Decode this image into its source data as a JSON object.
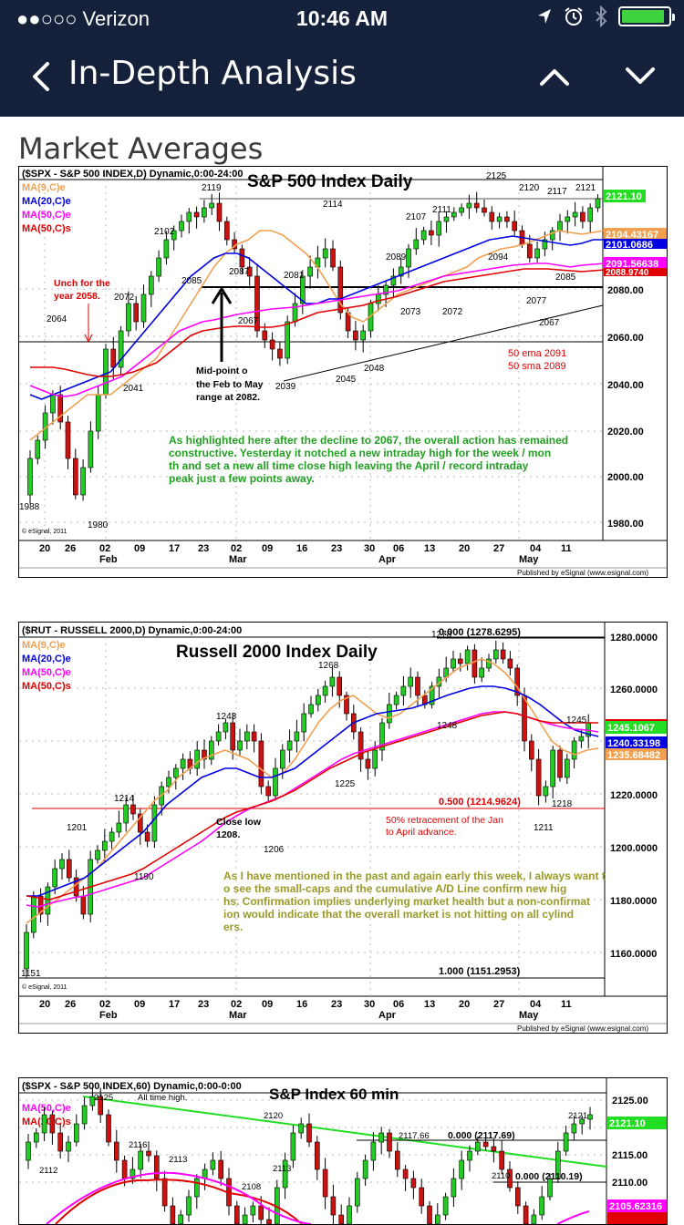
{
  "status_bar": {
    "carrier": "●●○○○ Verizon",
    "time": "10:46 AM"
  },
  "nav": {
    "title": "In-Depth Analysis"
  },
  "section": {
    "title": "Market Averages"
  },
  "chart1": {
    "header": "($SPX - S&P 500 INDEX,D) Dynamic,0:00-24:00",
    "title": "S&P 500 Index Daily",
    "legend": [
      "MA(9,C)e",
      "MA(20,C)e",
      "MA(50,C)e",
      "MA(50,C)s"
    ],
    "price_labels": [
      "2121.10",
      "2104.43167",
      "2101.0686",
      "2091.56638",
      "2088.9740"
    ],
    "y_ticks": [
      "2080.00",
      "2060.00",
      "2040.00",
      "2020.00",
      "2000.00",
      "1980.00"
    ],
    "x_ticks": [
      "20",
      "26",
      "02",
      "09",
      "17",
      "23",
      "02",
      "09",
      "16",
      "23",
      "30",
      "06",
      "13",
      "20",
      "27",
      "04",
      "11"
    ],
    "months": [
      "Feb",
      "Mar",
      "Apr",
      "May"
    ],
    "peaks": [
      "2119",
      "2125",
      "2120",
      "2117",
      "2121",
      "2114",
      "2107",
      "2111",
      "2102",
      "2089",
      "2094",
      "2085",
      "2087",
      "2081",
      "2072",
      "2077",
      "2073",
      "2072",
      "2067",
      "2067",
      "2085",
      "2064",
      "2041",
      "2039",
      "2045",
      "2048",
      "1988",
      "1980"
    ],
    "annotations": {
      "unch": "Unch for the year 2058.",
      "mid": "Mid-point of the Feb to May range at 2082.",
      "ema": "50 ema 2091",
      "sma": "50 sma 2089"
    },
    "commentary": "As highlighted here after the decline to 2067, the overall action has remained constructive.  Yesterday it notched a new intraday high for the week / month and set a new all time close high leaving the April / record intraday peak just a few points away.",
    "footer": "Published by eSignal (www.esignal.com)",
    "copyright": "© eSignal, 2011"
  },
  "chart2": {
    "header": "($RUT - RUSSELL 2000,D) Dynamic,0:00-24:00",
    "title": "Russell 2000 Index Daily",
    "legend": [
      "MA(9,C)e",
      "MA(20,C)e",
      "MA(50,C)e",
      "MA(50,C)s"
    ],
    "price_labels": [
      "1245.1067",
      "1240.33198",
      "1235.68482"
    ],
    "y_ticks": [
      "1280.0000",
      "1260.0000",
      "1240.0000",
      "1220.0000",
      "1200.0000",
      "1180.0000",
      "1160.0000"
    ],
    "x_ticks": [
      "20",
      "26",
      "02",
      "09",
      "17",
      "23",
      "02",
      "09",
      "16",
      "23",
      "30",
      "06",
      "13",
      "20",
      "27",
      "04",
      "11"
    ],
    "months": [
      "Feb",
      "Mar",
      "Apr",
      "May"
    ],
    "fib_top": "0.000 (1278.6295)",
    "fib_mid": "0.500 (1214.9624)",
    "fib_bot": "1.000 (1151.2953)",
    "peaks": [
      "1278",
      "1268",
      "1248",
      "1243",
      "1245",
      "1225",
      "1218",
      "1214",
      "1211",
      "1206",
      "1201",
      "1190",
      "1151"
    ],
    "annotations": {
      "close_low": "Close low 1208.",
      "retrace": "50% retracement of the Jan to April advance."
    },
    "commentary": "As I have mentioned in the past and again early this week, I always want to see the small-caps and the cumulative A/D Line confirm new highs.  Confirmation implies underlying market health but a non-confirmation would indicate that the overall market is not hitting on all cylinders.",
    "footer": "Published by eSignal (www.esignal.com)",
    "copyright": "© eSignal, 2011"
  },
  "chart3": {
    "header": "($SPX - S&P 500 INDEX,60) Dynamic,0:00-0:00",
    "title": "S&P Index 60 min",
    "legend": [
      "MA(50,C)e",
      "MA(20,C)s"
    ],
    "price_labels": [
      "2121.10",
      "2105.62316"
    ],
    "y_ticks": [
      "2125.00",
      "2120.00",
      "2115.00",
      "2110.00"
    ],
    "peaks": [
      "2125",
      "2120",
      "2117.66",
      "2116",
      "2113",
      "2113",
      "2112",
      "2110",
      "2108",
      "2121"
    ],
    "annotations": {
      "ath": "All time high.",
      "fib_top": "0.000 (2117.69)",
      "fib_mid": "0.000 (2110.19)"
    }
  },
  "colors": {
    "nav_bg": "#15203b",
    "ma9": "#f0a050",
    "ma20": "#0000e0",
    "ma50e": "#ff00ff",
    "ma50s": "#e00000",
    "commentary1": "#22a022",
    "commentary2": "#9a9a2a"
  }
}
